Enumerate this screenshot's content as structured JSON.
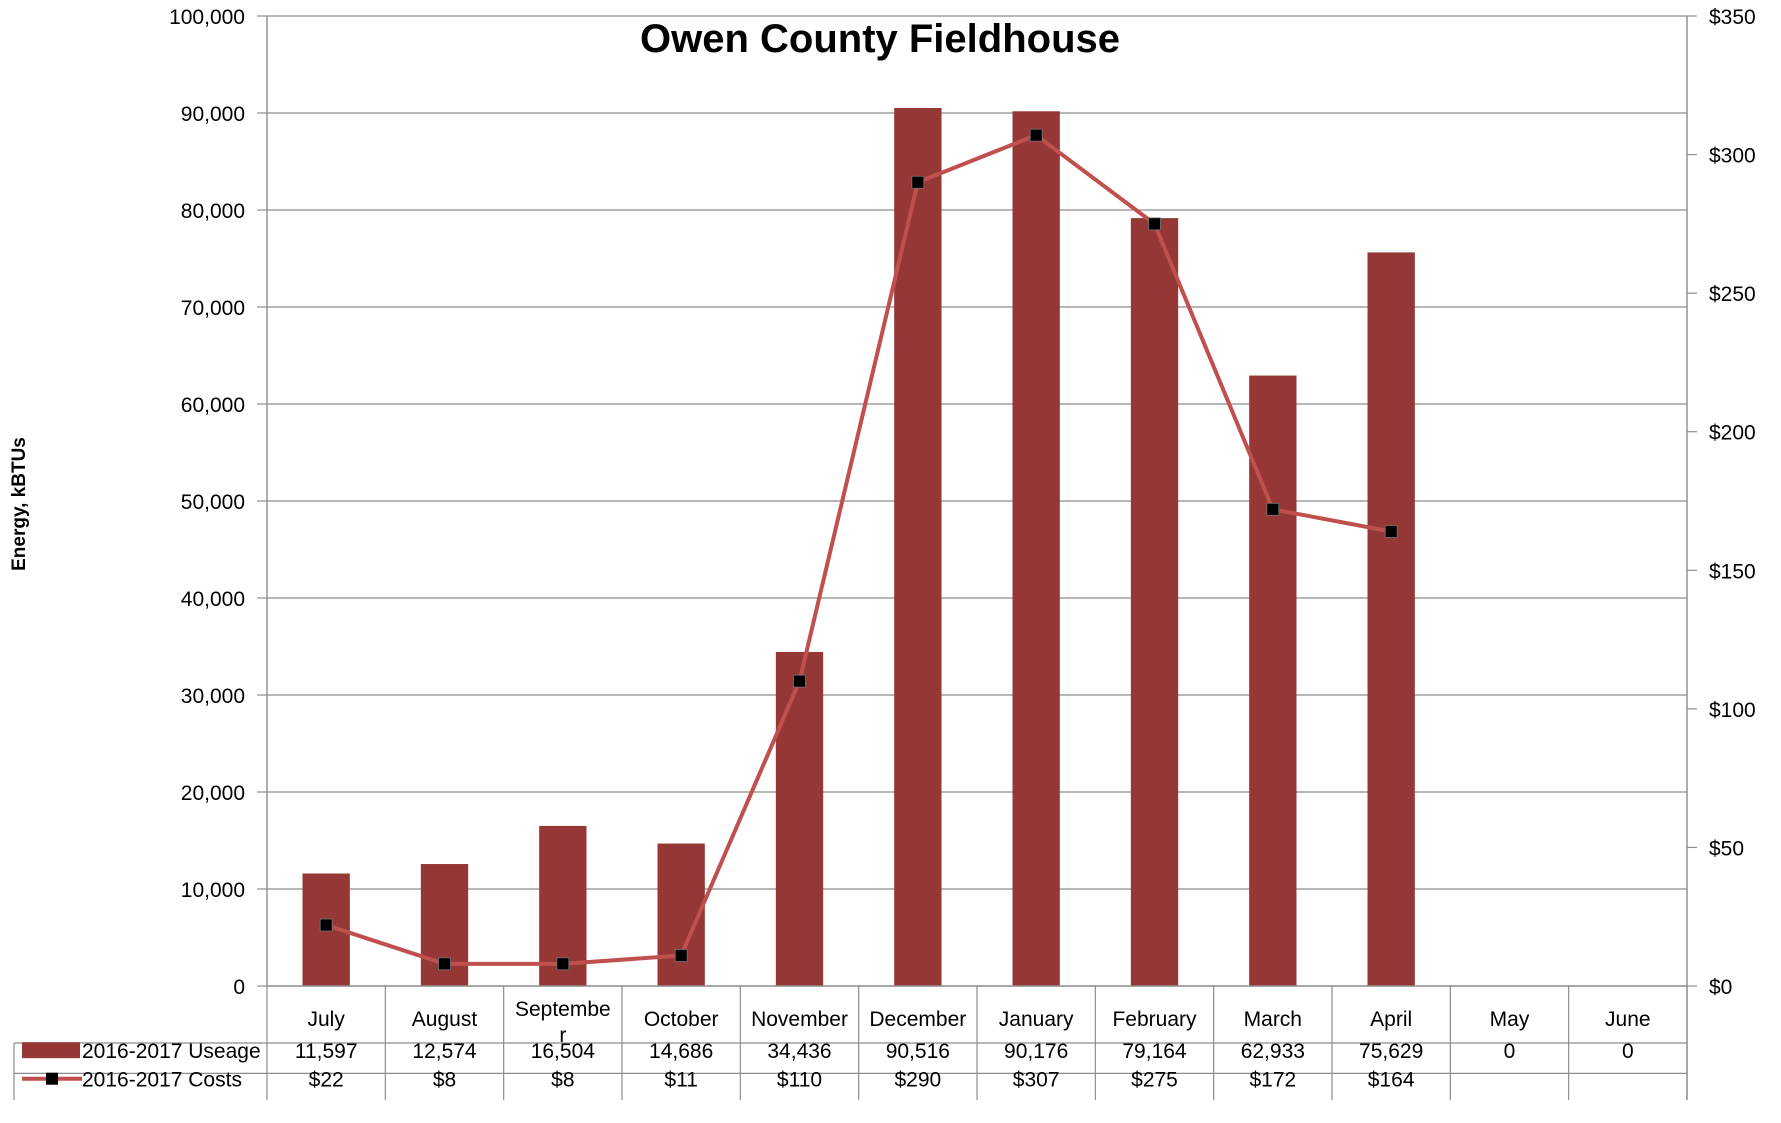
{
  "chart_data": {
    "type": "bar",
    "title": "Owen County Fieldhouse",
    "ylabel": "Energy, kBTUs",
    "y2label": "",
    "ylim": [
      0,
      100000
    ],
    "y2lim": [
      0,
      350
    ],
    "yticks": [
      "0",
      "10,000",
      "20,000",
      "30,000",
      "40,000",
      "50,000",
      "60,000",
      "70,000",
      "80,000",
      "90,000",
      "100,000"
    ],
    "y2ticks": [
      "$0",
      "$50",
      "$100",
      "$150",
      "$200",
      "$250",
      "$300",
      "$350"
    ],
    "categories": [
      "July",
      "August",
      "Septembe\nr",
      "October",
      "November",
      "December",
      "January",
      "February",
      "March",
      "April",
      "May",
      "June"
    ],
    "grid": true,
    "legend": "data-table",
    "series": [
      {
        "name": "2016-2017 Useage",
        "type": "bar",
        "axis": "left",
        "color": "#953735",
        "values": [
          11597,
          12574,
          16504,
          14686,
          34436,
          90516,
          90176,
          79164,
          62933,
          75629,
          0,
          0
        ],
        "labels": [
          "11,597",
          "12,574",
          "16,504",
          "14,686",
          "34,436",
          "90,516",
          "90,176",
          "79,164",
          "62,933",
          "75,629",
          "0",
          "0"
        ]
      },
      {
        "name": "2016-2017 Costs",
        "type": "line",
        "axis": "right",
        "color": "#C0504D",
        "marker_color": "#000000",
        "values": [
          22,
          8,
          8,
          11,
          110,
          290,
          307,
          275,
          172,
          164,
          null,
          null
        ],
        "labels": [
          "$22",
          "$8",
          "$8",
          "$11",
          "$110",
          "$290",
          "$307",
          "$275",
          "$172",
          "$164",
          "",
          ""
        ]
      }
    ]
  }
}
